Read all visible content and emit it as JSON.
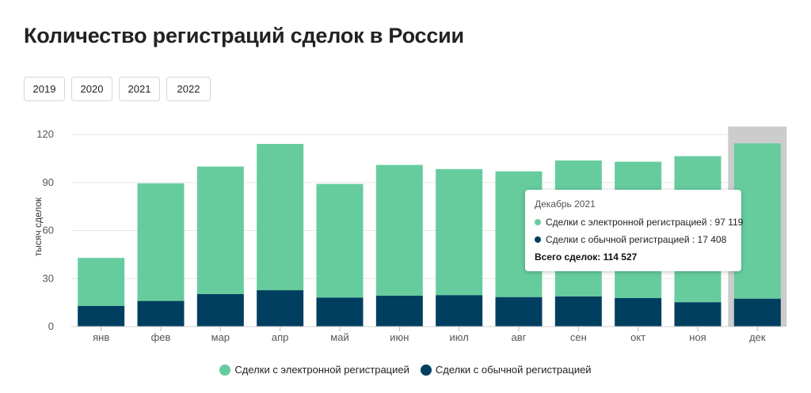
{
  "page": {
    "title": "Количество регистраций сделок в России",
    "years": [
      "2019",
      "2020",
      "2021",
      "2022"
    ]
  },
  "colors": {
    "electronic": "#66cc9e",
    "regular": "#003f5f",
    "highlight": "#cccccc",
    "grid": "#e6e6e6"
  },
  "tooltip": {
    "title": "Декабрь 2021",
    "electronic": "Сделки с электронной регистрацией : 97 119",
    "regular": "Сделки с обычной регистрацией : 17 408",
    "total": "Всего сделок: 114 527"
  },
  "chart_data": {
    "type": "bar",
    "stacked": true,
    "categories": [
      "янв",
      "фев",
      "мар",
      "апр",
      "май",
      "июн",
      "июл",
      "авг",
      "сен",
      "окт",
      "ноя",
      "дек"
    ],
    "series": [
      {
        "name": "Сделки с обычной регистрацией",
        "values": [
          12.9,
          16.0,
          20.3,
          22.7,
          18.1,
          19.3,
          19.6,
          18.4,
          18.8,
          17.8,
          15.2,
          17.4
        ]
      },
      {
        "name": "Сделки с электронной регистрацией",
        "values": [
          30.0,
          73.5,
          79.7,
          91.4,
          71.0,
          81.7,
          78.8,
          78.6,
          85.0,
          85.2,
          91.3,
          97.1
        ]
      }
    ],
    "ylabel": "тысяч сделок",
    "yticks": [
      0,
      30,
      60,
      90,
      120
    ],
    "ylim": [
      0,
      125
    ],
    "highlighted_category": "дек",
    "legend": [
      "Сделки с электронной регистрацией",
      "Сделки с обычной регистрацией"
    ],
    "legend_position": "bottom",
    "grid": true
  }
}
